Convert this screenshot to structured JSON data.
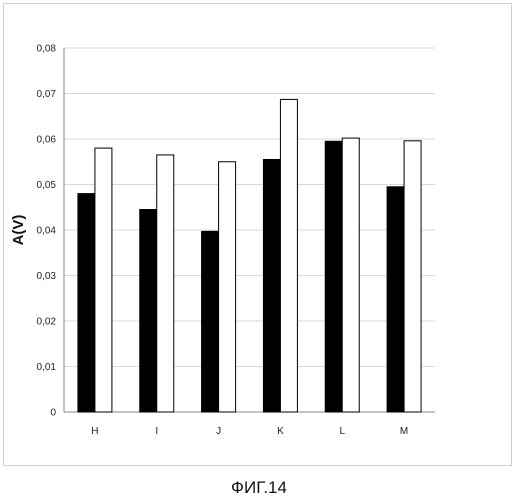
{
  "caption": "ФИГ.14",
  "chart_data": {
    "type": "bar",
    "title": "",
    "xlabel": "",
    "ylabel": "A(V)",
    "categories": [
      "H",
      "I",
      "J",
      "K",
      "L",
      "M"
    ],
    "series": [
      {
        "color": "#000000",
        "values": [
          0.048,
          0.0445,
          0.0397,
          0.0555,
          0.0595,
          0.0495
        ]
      },
      {
        "color": "#ffffff",
        "values": [
          0.058,
          0.0565,
          0.055,
          0.0687,
          0.0602,
          0.0596
        ]
      }
    ],
    "ylim": [
      0,
      0.08
    ],
    "yticks": [
      "0",
      "0,01",
      "0,02",
      "0,03",
      "0,04",
      "0,05",
      "0,06",
      "0,07",
      "0,08"
    ],
    "grid": true,
    "legend": "none"
  }
}
